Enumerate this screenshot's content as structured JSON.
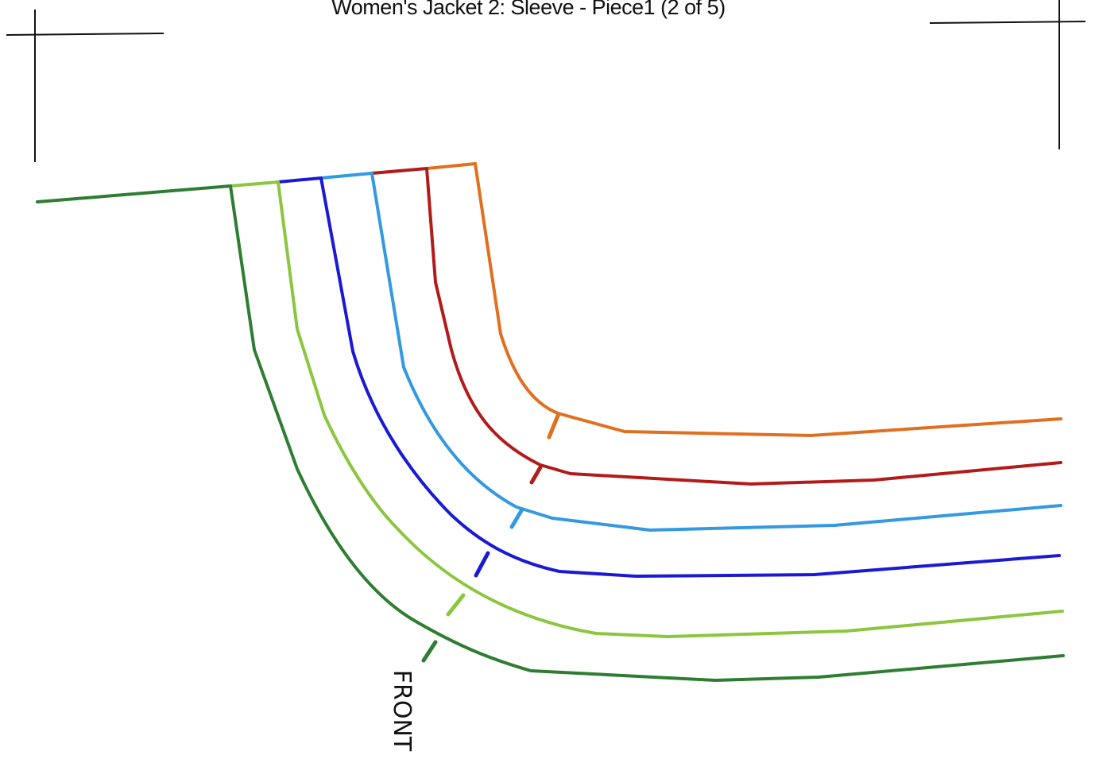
{
  "title": "Women's Jacket 2: Sleeve - Piece1 (2 of 5)",
  "front_label": "FRONT",
  "colors": {
    "size_1": "#2e7d32",
    "size_2": "#8cc63f",
    "size_3": "#1a1ad4",
    "size_4": "#3399e0",
    "size_5": "#b31b1b",
    "size_6": "#e07020",
    "registration": "#111111"
  }
}
